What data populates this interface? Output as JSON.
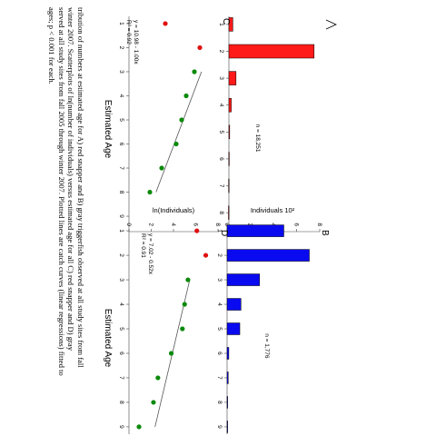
{
  "caption": {
    "lines": [
      "tribution of numbers at estimated age for A) red snapper and B) gray triggerfish observed at all study sites from fall",
      "winter 2007. Scatterplots of ln(number of individuals) versus estimated age for all C) red snapper and D) gray",
      "served at all study sites from fall 2005 through winter 2007. Plotted lines are catch curves (linear regressions) fitted to",
      "ages; p < 0.001 for each."
    ]
  },
  "colors": {
    "red_snapper": "#ff1a1a",
    "gray_triggerfish": "#0a0af0",
    "fitted_points": "#0a8a0a",
    "excluded_points": "#e01010",
    "fit_line": "#555555"
  },
  "chart_data": [
    {
      "panel": "A",
      "type": "bar",
      "categories": [
        "1",
        "2",
        "3",
        "4",
        "5",
        "6",
        "7",
        "8"
      ],
      "values": [
        1.0,
        21.5,
        1.8,
        0.6,
        0.2,
        0.1,
        0.05,
        0.02
      ],
      "ylim": [
        0,
        22
      ],
      "n_label": "n = 18,251",
      "xlabel": "",
      "ylabel": ""
    },
    {
      "panel": "B",
      "type": "bar",
      "categories": [
        "1",
        "2",
        "3",
        "4",
        "5",
        "6",
        "7",
        "8",
        "9"
      ],
      "values": [
        4.9,
        7.1,
        2.8,
        1.2,
        1.1,
        0.15,
        0.1,
        0.05,
        0.05
      ],
      "ylim": [
        0,
        8
      ],
      "yticks": [
        "0",
        "2",
        "4",
        "6",
        "8"
      ],
      "n_label": "n = 1,776",
      "ylabel": "Individuals 10²"
    },
    {
      "panel": "C",
      "type": "scatter",
      "x": [
        1,
        2,
        3,
        4,
        5,
        6,
        7,
        8
      ],
      "y": [
        4.0,
        7.8,
        7.2,
        6.3,
        5.8,
        5.2,
        3.6,
        2.3
      ],
      "fitted": [
        false,
        false,
        true,
        true,
        true,
        true,
        true,
        true
      ],
      "xticks": [
        "1",
        "2",
        "3",
        "4",
        "5",
        "6",
        "7",
        "8",
        "9"
      ],
      "xlim": [
        0.7,
        9.3
      ],
      "ylim": [
        0,
        10
      ],
      "equation": "y = 10.98 - 1.00x",
      "r2": "R² = 0.92",
      "xlabel": "Estimated Age"
    },
    {
      "panel": "D",
      "type": "scatter",
      "x": [
        1,
        2,
        3,
        4,
        5,
        6,
        7,
        8,
        9
      ],
      "y": [
        6.1,
        6.9,
        5.3,
        5.0,
        4.8,
        3.8,
        2.6,
        2.2,
        0.9
      ],
      "fitted": [
        false,
        false,
        true,
        true,
        true,
        true,
        true,
        true,
        true
      ],
      "xticks": [
        "1",
        "2",
        "3",
        "4",
        "5",
        "6",
        "7",
        "8",
        "9"
      ],
      "xlim": [
        0.7,
        9.3
      ],
      "ylim": [
        0,
        8
      ],
      "yticks": [
        "0",
        "2",
        "4",
        "6",
        "8"
      ],
      "equation": "y = 7.02 - 0.52x",
      "r2": "R² = 0.91",
      "ylabel": "ln(Individuals)",
      "xlabel": "Estimated Age"
    }
  ]
}
